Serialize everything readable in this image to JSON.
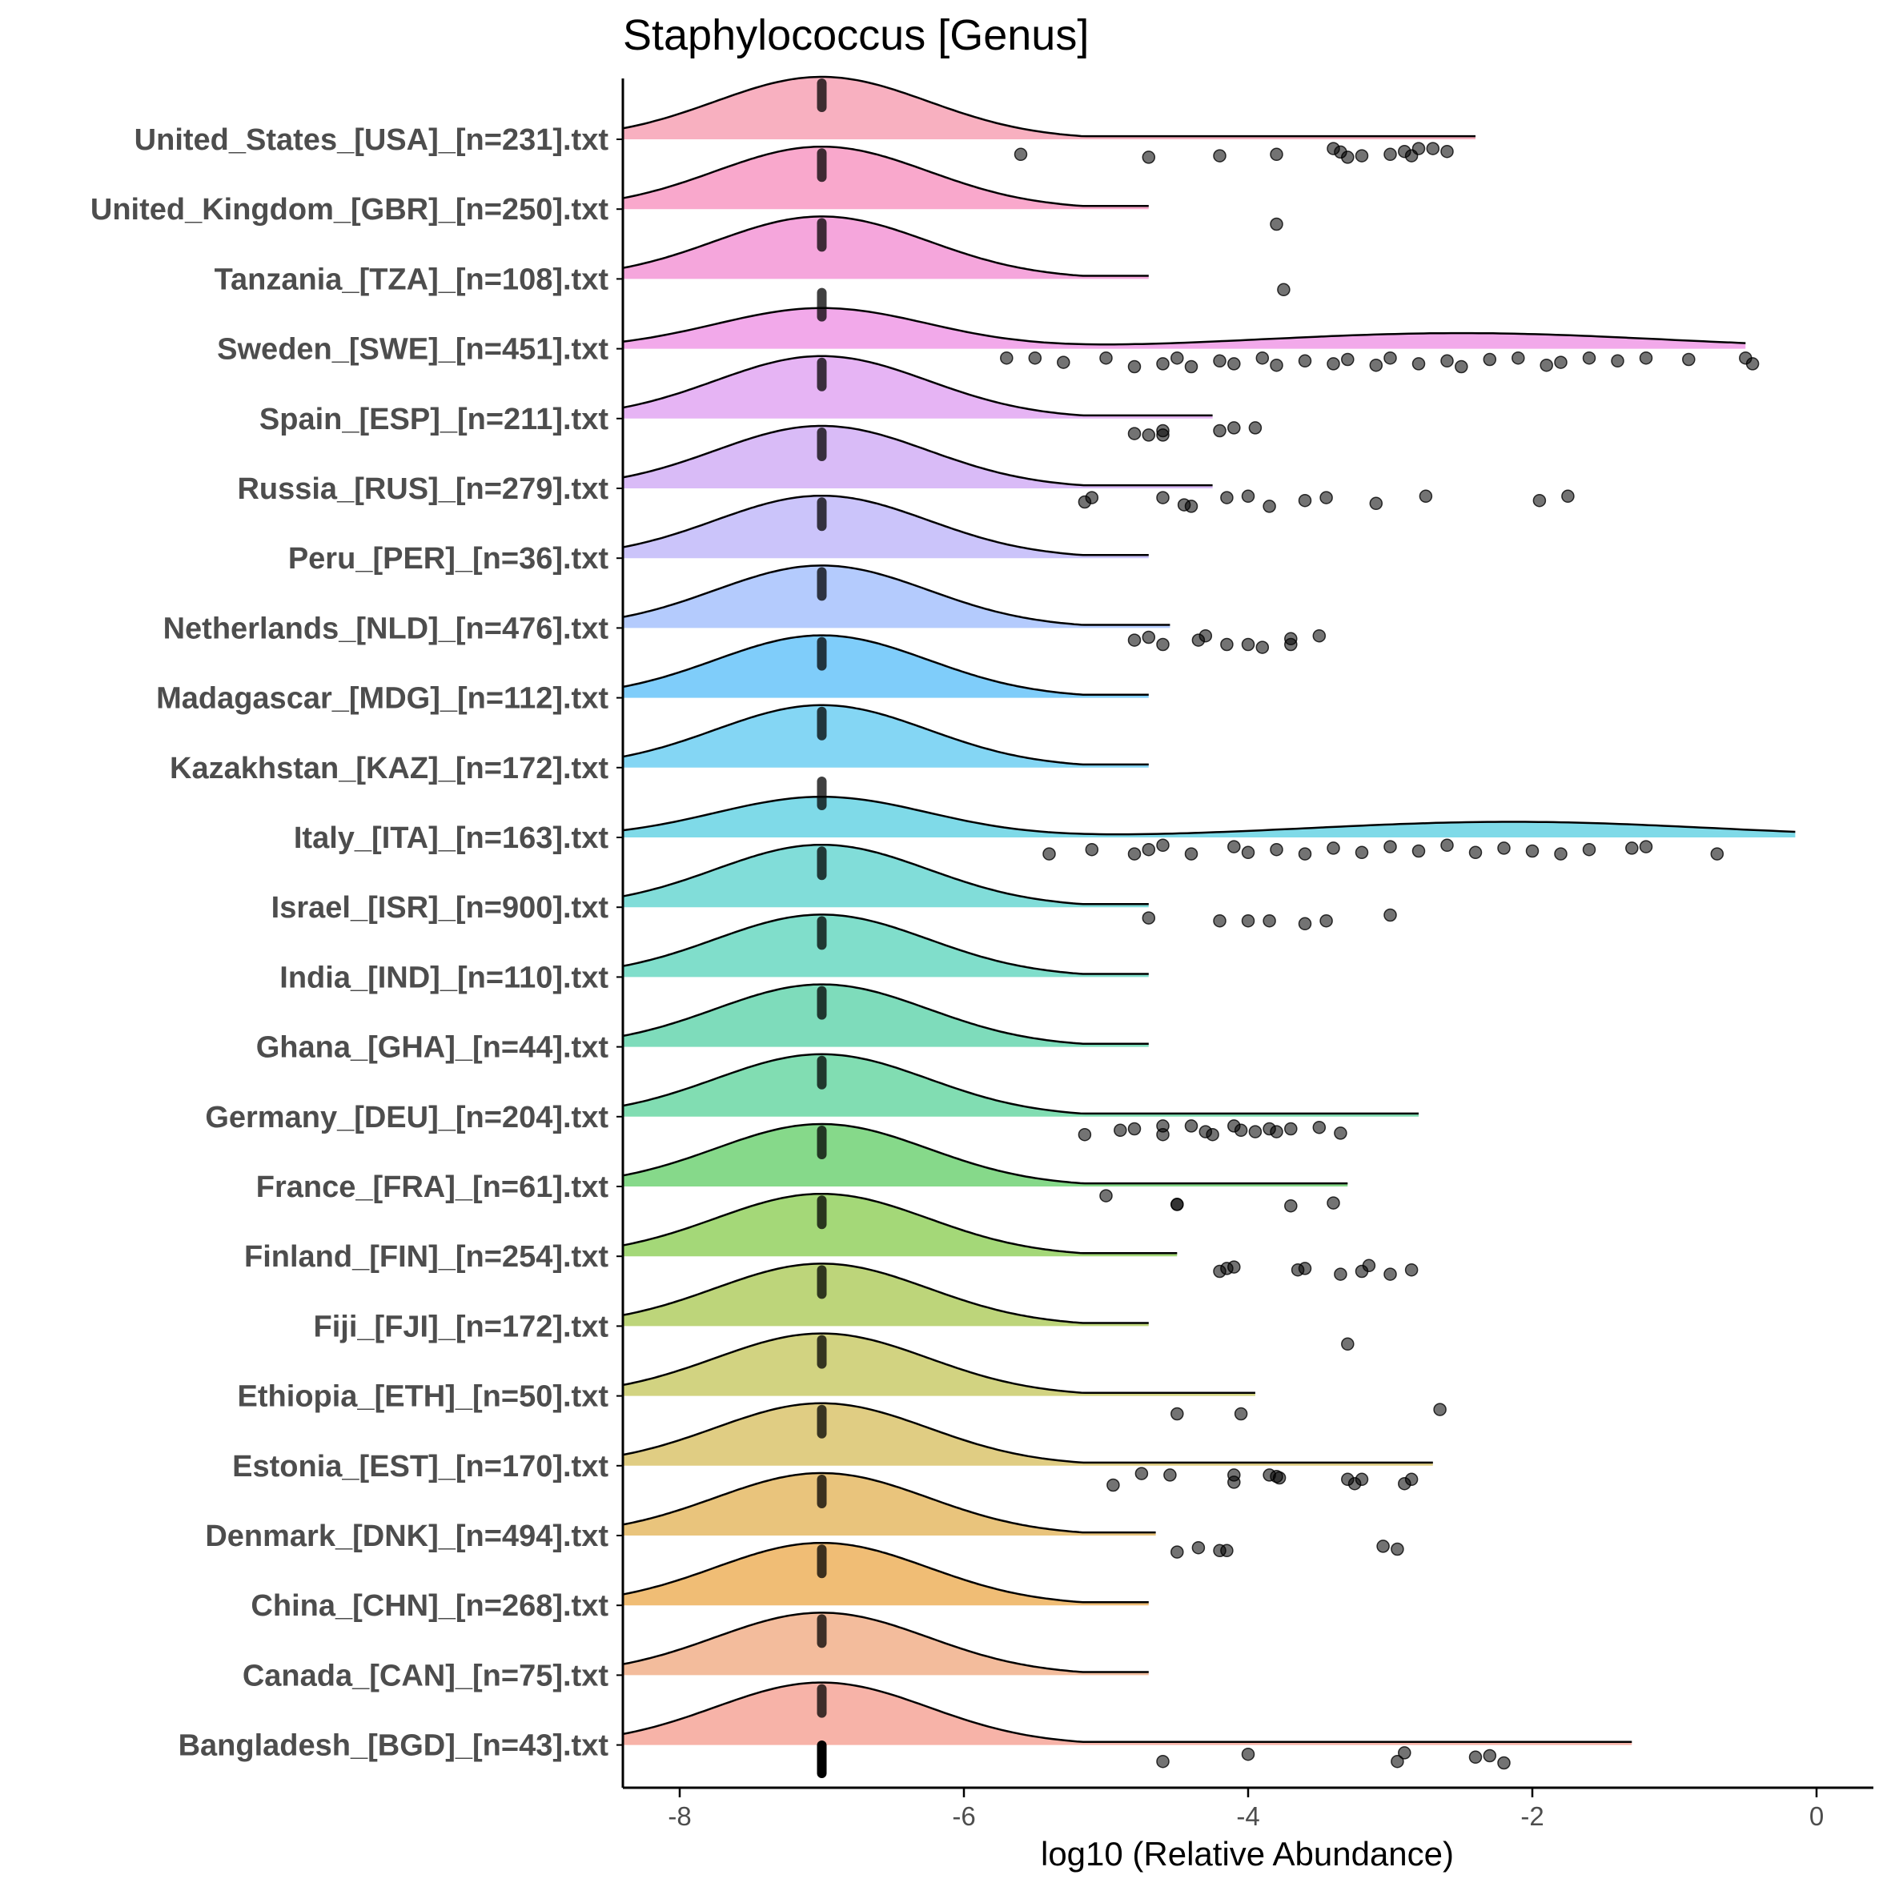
{
  "chart_data": {
    "type": "ridgeline",
    "title": "Staphylococcus [Genus]",
    "xlabel": "log10 (Relative Abundance)",
    "ylabel": "",
    "xlim": [
      -8.4,
      0.4
    ],
    "xticks": [
      -8,
      -6,
      -4,
      -2,
      0
    ],
    "xtick_labels": [
      "-8",
      "-6",
      "-4",
      "-2",
      "0"
    ],
    "baseline_value": -7.0,
    "series": [
      {
        "name": "United_States_[USA]_[n=231].txt",
        "color": "#f8b0c0",
        "peak": -7.0,
        "right": -2.4,
        "points": [
          [
            -5.6,
            0.3
          ],
          [
            -4.7,
            0.4
          ],
          [
            -4.2,
            0.35
          ],
          [
            -3.8,
            0.3
          ],
          [
            -3.4,
            0.1
          ],
          [
            -3.35,
            0.22
          ],
          [
            -3.3,
            0.4
          ],
          [
            -3.2,
            0.35
          ],
          [
            -3.0,
            0.3
          ],
          [
            -2.9,
            0.2
          ],
          [
            -2.85,
            0.35
          ],
          [
            -2.8,
            0.1
          ],
          [
            -2.7,
            0.1
          ],
          [
            -2.6,
            0.2
          ]
        ]
      },
      {
        "name": "United_Kingdom_[GBR]_[n=250].txt",
        "color": "#f9a8cc",
        "peak": -7.0,
        "right": -4.7,
        "points": [
          [
            -3.8,
            0.3
          ]
        ]
      },
      {
        "name": "Tanzania_[TZA]_[n=108].txt",
        "color": "#f5a6dc",
        "peak": -7.0,
        "right": -4.7,
        "points": [
          [
            -3.75,
            0.15
          ]
        ]
      },
      {
        "name": "Sweden_[SWE]_[n=451].txt",
        "color": "#f2a9ea",
        "peak": -7.0,
        "right": -0.5,
        "multimodal": true,
        "points": [
          [
            -5.7,
            0.1
          ],
          [
            -5.5,
            0.1
          ],
          [
            -5.3,
            0.25
          ],
          [
            -5.0,
            0.1
          ],
          [
            -4.8,
            0.4
          ],
          [
            -4.6,
            0.3
          ],
          [
            -4.5,
            0.1
          ],
          [
            -4.4,
            0.4
          ],
          [
            -4.2,
            0.2
          ],
          [
            -4.1,
            0.3
          ],
          [
            -3.9,
            0.1
          ],
          [
            -3.8,
            0.35
          ],
          [
            -3.6,
            0.2
          ],
          [
            -3.4,
            0.3
          ],
          [
            -3.3,
            0.15
          ],
          [
            -3.1,
            0.35
          ],
          [
            -3.0,
            0.1
          ],
          [
            -2.8,
            0.3
          ],
          [
            -2.6,
            0.2
          ],
          [
            -2.5,
            0.4
          ],
          [
            -2.3,
            0.15
          ],
          [
            -2.1,
            0.1
          ],
          [
            -1.9,
            0.35
          ],
          [
            -1.8,
            0.25
          ],
          [
            -1.6,
            0.1
          ],
          [
            -1.4,
            0.2
          ],
          [
            -1.2,
            0.1
          ],
          [
            -0.9,
            0.15
          ],
          [
            -0.5,
            0.1
          ],
          [
            -0.45,
            0.3
          ]
        ]
      },
      {
        "name": "Spain_[ESP]_[n=211].txt",
        "color": "#e6b4f4",
        "peak": -7.0,
        "right": -4.25,
        "points": [
          [
            -4.8,
            0.3
          ],
          [
            -4.7,
            0.35
          ],
          [
            -4.6,
            0.2
          ],
          [
            -4.6,
            0.35
          ],
          [
            -4.2,
            0.2
          ],
          [
            -4.1,
            0.1
          ],
          [
            -3.95,
            0.1
          ]
        ]
      },
      {
        "name": "Russia_[RUS]_[n=279].txt",
        "color": "#d9bbf7",
        "peak": -7.0,
        "right": -4.25,
        "points": [
          [
            -5.15,
            0.25
          ],
          [
            -5.1,
            0.1
          ],
          [
            -4.6,
            0.1
          ],
          [
            -4.45,
            0.35
          ],
          [
            -4.4,
            0.4
          ],
          [
            -4.15,
            0.1
          ],
          [
            -4.0,
            0.05
          ],
          [
            -3.85,
            0.4
          ],
          [
            -3.6,
            0.2
          ],
          [
            -3.45,
            0.1
          ],
          [
            -3.1,
            0.3
          ],
          [
            -2.75,
            0.05
          ],
          [
            -1.95,
            0.2
          ],
          [
            -1.75,
            0.05
          ]
        ]
      },
      {
        "name": "Peru_[PER]_[n=36].txt",
        "color": "#cbc4fa",
        "peak": -7.0,
        "right": -4.7,
        "points": []
      },
      {
        "name": "Netherlands_[NLD]_[n=476].txt",
        "color": "#b4cbfd",
        "peak": -7.0,
        "right": -4.55,
        "points": [
          [
            -4.8,
            0.2
          ],
          [
            -4.7,
            0.1
          ],
          [
            -4.6,
            0.35
          ],
          [
            -4.35,
            0.2
          ],
          [
            -4.3,
            0.05
          ],
          [
            -4.15,
            0.35
          ],
          [
            -4.0,
            0.35
          ],
          [
            -3.9,
            0.45
          ],
          [
            -3.7,
            0.35
          ],
          [
            -3.7,
            0.15
          ],
          [
            -3.5,
            0.05
          ]
        ]
      },
      {
        "name": "Madagascar_[MDG]_[n=112].txt",
        "color": "#7fcdfa",
        "peak": -7.0,
        "right": -4.7,
        "points": []
      },
      {
        "name": "Kazakhstan_[KAZ]_[n=172].txt",
        "color": "#84d6f4",
        "peak": -7.0,
        "right": -4.7,
        "points": []
      },
      {
        "name": "Italy_[ITA]_[n=163].txt",
        "color": "#7fdae8",
        "peak": -7.0,
        "right": -0.15,
        "multimodal": true,
        "points": [
          [
            -5.4,
            0.35
          ],
          [
            -5.1,
            0.2
          ],
          [
            -4.8,
            0.35
          ],
          [
            -4.7,
            0.2
          ],
          [
            -4.6,
            0.05
          ],
          [
            -4.4,
            0.35
          ],
          [
            -4.1,
            0.1
          ],
          [
            -4.0,
            0.3
          ],
          [
            -3.8,
            0.2
          ],
          [
            -3.6,
            0.35
          ],
          [
            -3.4,
            0.15
          ],
          [
            -3.2,
            0.3
          ],
          [
            -3.0,
            0.1
          ],
          [
            -2.8,
            0.25
          ],
          [
            -2.6,
            0.05
          ],
          [
            -2.4,
            0.3
          ],
          [
            -2.2,
            0.15
          ],
          [
            -2.0,
            0.25
          ],
          [
            -1.8,
            0.35
          ],
          [
            -1.6,
            0.2
          ],
          [
            -1.3,
            0.15
          ],
          [
            -1.2,
            0.1
          ],
          [
            -0.7,
            0.35
          ]
        ]
      },
      {
        "name": "Israel_[ISR]_[n=900].txt",
        "color": "#81ddd9",
        "peak": -7.0,
        "right": -4.7,
        "points": [
          [
            -4.7,
            0.15
          ],
          [
            -4.2,
            0.25
          ],
          [
            -4.0,
            0.25
          ],
          [
            -3.85,
            0.25
          ],
          [
            -3.6,
            0.35
          ],
          [
            -3.45,
            0.25
          ],
          [
            -3.0,
            0.05
          ]
        ]
      },
      {
        "name": "India_[IND]_[n=110].txt",
        "color": "#80decb",
        "peak": -7.0,
        "right": -4.7,
        "points": []
      },
      {
        "name": "Ghana_[GHA]_[n=44].txt",
        "color": "#7edcbb",
        "peak": -7.0,
        "right": -4.7,
        "points": []
      },
      {
        "name": "Germany_[DEU]_[n=204].txt",
        "color": "#81ddb2",
        "peak": -7.0,
        "right": -2.8,
        "points": [
          [
            -5.15,
            0.4
          ],
          [
            -4.9,
            0.25
          ],
          [
            -4.8,
            0.2
          ],
          [
            -4.6,
            0.4
          ],
          [
            -4.6,
            0.1
          ],
          [
            -4.4,
            0.1
          ],
          [
            -4.3,
            0.3
          ],
          [
            -4.25,
            0.4
          ],
          [
            -4.1,
            0.1
          ],
          [
            -4.05,
            0.25
          ],
          [
            -3.95,
            0.3
          ],
          [
            -3.85,
            0.2
          ],
          [
            -3.8,
            0.3
          ],
          [
            -3.7,
            0.2
          ],
          [
            -3.5,
            0.15
          ],
          [
            -3.35,
            0.35
          ]
        ]
      },
      {
        "name": "France_[FRA]_[n=61].txt",
        "color": "#86d98a",
        "peak": -7.0,
        "right": -3.3,
        "points": [
          [
            -5.0,
            0.1
          ],
          [
            -4.5,
            0.4
          ],
          [
            -4.5,
            0.4
          ],
          [
            -3.7,
            0.45
          ],
          [
            -3.4,
            0.35
          ]
        ]
      },
      {
        "name": "Finland_[FIN]_[n=254].txt",
        "color": "#a4d878",
        "peak": -7.0,
        "right": -4.5,
        "points": [
          [
            -4.2,
            0.3
          ],
          [
            -4.15,
            0.2
          ],
          [
            -4.1,
            0.15
          ],
          [
            -3.65,
            0.25
          ],
          [
            -3.6,
            0.2
          ],
          [
            -3.35,
            0.4
          ],
          [
            -3.2,
            0.3
          ],
          [
            -3.15,
            0.1
          ],
          [
            -3.0,
            0.4
          ],
          [
            -2.85,
            0.25
          ]
        ]
      },
      {
        "name": "Fiji_[FJI]_[n=172].txt",
        "color": "#bdd57a",
        "peak": -7.0,
        "right": -4.7,
        "points": [
          [
            -3.3,
            0.4
          ]
        ]
      },
      {
        "name": "Ethiopia_[ETH]_[n=50].txt",
        "color": "#d2d381",
        "peak": -7.0,
        "right": -3.95,
        "points": [
          [
            -4.5,
            0.4
          ],
          [
            -4.05,
            0.4
          ],
          [
            -2.65,
            0.25
          ]
        ]
      },
      {
        "name": "Estonia_[EST]_[n=170].txt",
        "color": "#e0cd83",
        "peak": -7.0,
        "right": -2.7,
        "points": [
          [
            -4.95,
            0.45
          ],
          [
            -4.75,
            0.05
          ],
          [
            -4.55,
            0.1
          ],
          [
            -4.1,
            0.1
          ],
          [
            -4.1,
            0.35
          ],
          [
            -3.85,
            0.1
          ],
          [
            -3.8,
            0.15
          ],
          [
            -3.78,
            0.2
          ],
          [
            -3.3,
            0.25
          ],
          [
            -3.25,
            0.4
          ],
          [
            -3.2,
            0.25
          ],
          [
            -2.9,
            0.4
          ],
          [
            -2.85,
            0.25
          ]
        ]
      },
      {
        "name": "Denmark_[DNK]_[n=494].txt",
        "color": "#e9c47c",
        "peak": -7.0,
        "right": -4.65,
        "points": [
          [
            -4.5,
            0.35
          ],
          [
            -4.35,
            0.2
          ],
          [
            -4.2,
            0.3
          ],
          [
            -4.15,
            0.3
          ],
          [
            -3.05,
            0.15
          ],
          [
            -2.95,
            0.25
          ]
        ]
      },
      {
        "name": "China_[CHN]_[n=268].txt",
        "color": "#f0bd75",
        "peak": -7.0,
        "right": -4.7,
        "points": []
      },
      {
        "name": "Canada_[CAN]_[n=75].txt",
        "color": "#f3bc9c",
        "peak": -7.0,
        "right": -4.7,
        "points": []
      },
      {
        "name": "Bangladesh_[BGD]_[n=43].txt",
        "color": "#f7b3a8",
        "peak": -7.0,
        "right": -1.3,
        "points": [
          [
            -4.6,
            0.35
          ],
          [
            -4.0,
            0.1
          ],
          [
            -2.9,
            0.05
          ],
          [
            -2.95,
            0.35
          ],
          [
            -2.4,
            0.2
          ],
          [
            -2.3,
            0.15
          ],
          [
            -2.2,
            0.4
          ]
        ]
      }
    ]
  }
}
